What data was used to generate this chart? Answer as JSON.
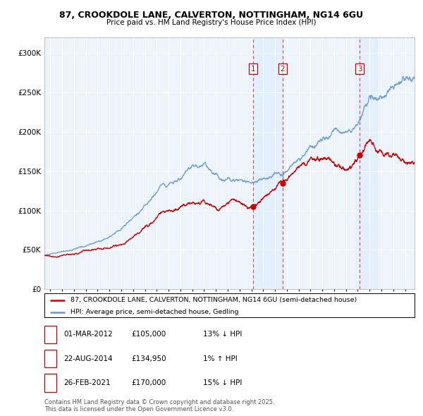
{
  "title1": "87, CROOKDOLE LANE, CALVERTON, NOTTINGHAM, NG14 6GU",
  "title2": "Price paid vs. HM Land Registry's House Price Index (HPI)",
  "legend_line1": "87, CROOKDOLE LANE, CALVERTON, NOTTINGHAM, NG14 6GU (semi-detached house)",
  "legend_line2": "HPI: Average price, semi-detached house, Gedling",
  "transactions": [
    {
      "num": 1,
      "date": "01-MAR-2012",
      "price": "£105,000",
      "hpi": "13% ↓ HPI",
      "x": 2012.17
    },
    {
      "num": 2,
      "date": "22-AUG-2014",
      "price": "£134,950",
      "hpi": "1% ↑ HPI",
      "x": 2014.64
    },
    {
      "num": 3,
      "date": "26-FEB-2021",
      "price": "£170,000",
      "hpi": "15% ↓ HPI",
      "x": 2021.15
    }
  ],
  "footer": "Contains HM Land Registry data © Crown copyright and database right 2025.\nThis data is licensed under the Open Government Licence v3.0.",
  "red_color": "#cc0000",
  "blue_color": "#6699cc",
  "shade_color": "#ddeeff",
  "background_color": "#ffffff",
  "grid_color": "#cccccc",
  "ylim": [
    0,
    320000
  ],
  "yticks": [
    0,
    50000,
    100000,
    150000,
    200000,
    250000,
    300000
  ],
  "xlim_start": 1994.5,
  "xlim_end": 2025.8
}
